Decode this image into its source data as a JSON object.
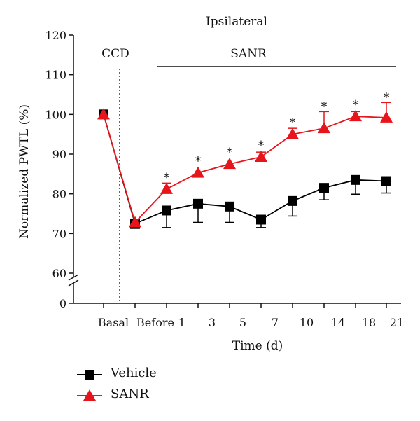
{
  "chart_data": {
    "type": "line",
    "title": "Ipsilateral",
    "xlabel": "Time (d)",
    "ylabel": "Normalized PWTL (%)",
    "ylim": [
      60,
      120
    ],
    "y_break_ticks": [
      "0"
    ],
    "yticks": [
      "60",
      "70",
      "80",
      "90",
      "100",
      "110",
      "120"
    ],
    "categories": [
      "Basal",
      "Before",
      "1",
      "3",
      "5",
      "7",
      "10",
      "14",
      "18",
      "21"
    ],
    "annotations": {
      "ccd": "CCD",
      "sanr_bar": "SANR",
      "significance": "*"
    },
    "series": [
      {
        "name": "Vehicle",
        "color": "#000000",
        "marker": "square",
        "values": [
          100,
          72.5,
          75.8,
          77.5,
          76.8,
          73.5,
          78.2,
          81.5,
          83.5,
          83.2
        ],
        "errors": [
          0,
          1.2,
          4.3,
          4.7,
          4.0,
          2.0,
          3.8,
          3.0,
          3.6,
          3.0
        ]
      },
      {
        "name": "SANR",
        "color": "#e8141c",
        "marker": "triangle",
        "values": [
          100,
          72.8,
          81.2,
          85.3,
          87.5,
          89.3,
          95.0,
          96.5,
          99.5,
          99.2
        ],
        "errors": [
          0,
          0,
          1.5,
          0,
          0,
          1.2,
          1.5,
          4.2,
          1.2,
          3.8
        ],
        "significant": [
          false,
          false,
          true,
          true,
          true,
          true,
          true,
          true,
          true,
          true
        ]
      }
    ]
  }
}
